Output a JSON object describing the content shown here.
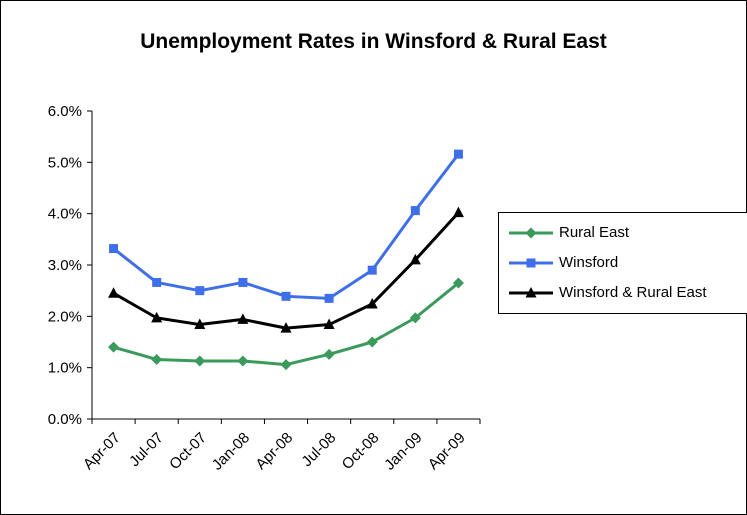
{
  "chart_data": {
    "type": "line",
    "title": "Unemployment Rates in Winsford & Rural East",
    "xlabel": "",
    "ylabel": "",
    "categories": [
      "Apr-07",
      "Jul-07",
      "Oct-07",
      "Jan-08",
      "Apr-08",
      "Jul-08",
      "Oct-08",
      "Jan-09",
      "Apr-09"
    ],
    "y_ticks": [
      "0.0%",
      "1.0%",
      "2.0%",
      "3.0%",
      "4.0%",
      "5.0%",
      "6.0%"
    ],
    "ylim": [
      0,
      6
    ],
    "grid": false,
    "legend_position": "right",
    "series": [
      {
        "name": "Rural East",
        "color": "#3a9a5b",
        "marker": "diamond",
        "values": [
          1.4,
          1.16,
          1.13,
          1.13,
          1.06,
          1.26,
          1.5,
          1.97,
          2.65
        ]
      },
      {
        "name": "Winsford",
        "color": "#3f6fe8",
        "marker": "square",
        "values": [
          3.32,
          2.66,
          2.5,
          2.66,
          2.39,
          2.35,
          2.9,
          4.06,
          5.16
        ]
      },
      {
        "name": "Winsford & Rural East",
        "color": "#000000",
        "marker": "triangle",
        "values": [
          2.45,
          1.97,
          1.84,
          1.94,
          1.77,
          1.84,
          2.24,
          3.1,
          4.02
        ]
      }
    ]
  }
}
